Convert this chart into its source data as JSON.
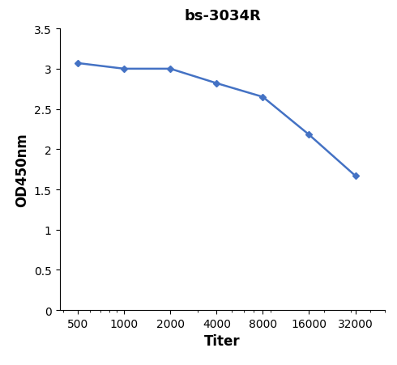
{
  "title": "bs-3034R",
  "xlabel": "Titer",
  "ylabel": "OD450nm",
  "x_values": [
    500,
    1000,
    2000,
    4000,
    8000,
    16000,
    32000
  ],
  "y_values": [
    3.07,
    3.0,
    3.0,
    2.82,
    2.65,
    2.18,
    1.67
  ],
  "line_color": "#4472C4",
  "marker": "D",
  "marker_size": 4,
  "ylim": [
    0,
    3.5
  ],
  "yticks": [
    0,
    0.5,
    1,
    1.5,
    2,
    2.5,
    3,
    3.5
  ],
  "title_fontsize": 13,
  "axis_label_fontsize": 12,
  "tick_fontsize": 10,
  "background_color": "#ffffff"
}
